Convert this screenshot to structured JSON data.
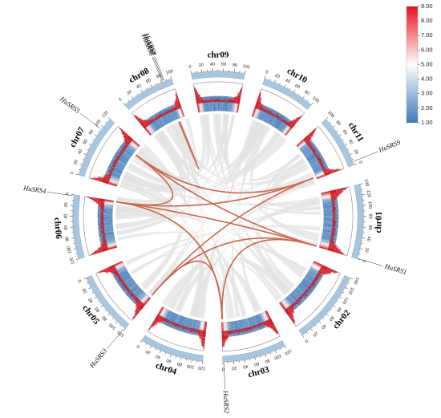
{
  "chromosomes": [
    {
      "name": "chr01",
      "length": 140,
      "labels": [
        "0",
        "20",
        "40",
        "60",
        "80",
        "100",
        "120",
        "140"
      ]
    },
    {
      "name": "chr02",
      "length": 140,
      "labels": [
        "0",
        "20",
        "40",
        "60",
        "80",
        "100",
        "120",
        "140"
      ]
    },
    {
      "name": "chr03",
      "length": 120,
      "labels": [
        "0",
        "20",
        "40",
        "60",
        "80",
        "100",
        "120"
      ]
    },
    {
      "name": "chr04",
      "length": 120,
      "labels": [
        "0",
        "20",
        "40",
        "60",
        "80",
        "100",
        "120"
      ]
    },
    {
      "name": "chr05",
      "length": 120,
      "labels": [
        "0",
        "20",
        "40",
        "60",
        "80",
        "100",
        "120"
      ]
    },
    {
      "name": "chr06",
      "length": 120,
      "labels": [
        "0",
        "20",
        "40",
        "60",
        "80",
        "100",
        "120"
      ]
    },
    {
      "name": "chr07",
      "length": 120,
      "labels": [
        "0",
        "20",
        "40",
        "60",
        "80",
        "100",
        "120"
      ]
    },
    {
      "name": "chr08",
      "length": 100,
      "labels": [
        "0",
        "20",
        "40",
        "60",
        "80",
        "100"
      ]
    },
    {
      "name": "chr09",
      "length": 100,
      "labels": [
        "0",
        "20",
        "40",
        "60",
        "80",
        "100"
      ]
    },
    {
      "name": "chr10",
      "length": 100,
      "labels": [
        "0",
        "20",
        "40",
        "60",
        "80",
        "100"
      ]
    },
    {
      "name": "chr11",
      "length": 100,
      "labels": [
        "0",
        "20",
        "40",
        "60",
        "80",
        "100"
      ]
    }
  ],
  "genes": [
    {
      "name": "HuSRS1",
      "chr": "chr01",
      "pos": 1
    },
    {
      "name": "HuSRS2",
      "chr": "chr03",
      "pos": 2
    },
    {
      "name": "HuSRS3",
      "chr": "chr05",
      "pos": 118
    },
    {
      "name": "HuSRS4",
      "chr": "chr06",
      "pos": 2
    },
    {
      "name": "HuSRS5",
      "chr": "chr07",
      "pos": 95
    },
    {
      "name": "HuSRS6",
      "chr": "chr08",
      "pos": 82
    },
    {
      "name": "HuSRS7",
      "chr": "chr08",
      "pos": 84
    },
    {
      "name": "HuSRS8",
      "chr": "chr08",
      "pos": 86
    },
    {
      "name": "HuSRS9",
      "chr": "chr11",
      "pos": 6
    }
  ],
  "legend": {
    "labels": [
      "9.00",
      "8.00",
      "7.00",
      "6.00",
      "5.00",
      "4.00",
      "3.00",
      "2.00",
      "1.00"
    ],
    "min_color": "#3f79b8",
    "mid_color": "#ffffff",
    "max_color": "#e8111a"
  },
  "colors": {
    "chrom_band": "#a9c6e0",
    "histogram": "#d0121c",
    "link_highlight": "#c9684e",
    "link_background": "#e3e3e3"
  }
}
